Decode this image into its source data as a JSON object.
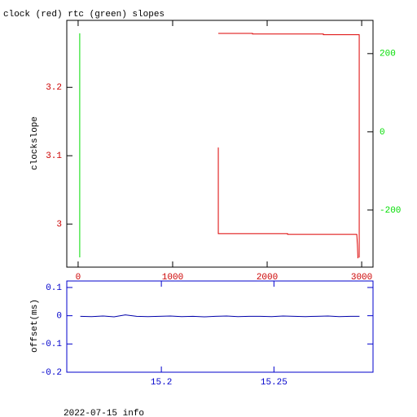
{
  "chart_data": [
    {
      "type": "line",
      "title": "clock (red) rtc (green) slopes",
      "ylabel": "clockslope",
      "axis_color": "#000000",
      "xtick_color": "#cc0000",
      "ytick_color": "#cc0000",
      "y2tick_color": "#00dd00",
      "xlim": [
        -120,
        3120
      ],
      "xticks": [
        0,
        1000,
        2000,
        3000
      ],
      "ylim": [
        2.937,
        3.298
      ],
      "yticks": [
        3,
        3.1,
        3.2
      ],
      "y2lim": [
        -346,
        285
      ],
      "y2ticks": [
        -200,
        0,
        200
      ],
      "series": [
        {
          "color": "#dd0000",
          "axis": "y",
          "x": [
            1483,
            1845,
            1845,
            2595,
            2595,
            2974,
            2974,
            null,
            1483,
            1483,
            2216,
            2216,
            2948,
            2955,
            2960
          ],
          "values": [
            3.279,
            3.279,
            3.278,
            3.278,
            3.277,
            3.277,
            2.951,
            null,
            3.112,
            2.986,
            2.986,
            2.985,
            2.985,
            2.97,
            2.95
          ]
        },
        {
          "color": "#00dd00",
          "axis": "y2",
          "x": [
            17,
            17
          ],
          "values": [
            252,
            -321
          ]
        }
      ]
    },
    {
      "type": "line",
      "ylabel": "offset(ms)",
      "caption": "2022-07-15 info",
      "axis_color": "#0000cc",
      "xtick_color": "#0000cc",
      "ytick_color": "#0000cc",
      "xlim": [
        15.158,
        15.294
      ],
      "xticks": [
        15.2,
        15.25
      ],
      "ylim": [
        -0.2,
        0.123
      ],
      "yticks": [
        -0.2,
        -0.1,
        0,
        0.1
      ],
      "series": [
        {
          "color": "#0000aa",
          "axis": "y",
          "x": [
            15.164,
            15.169,
            15.174,
            15.179,
            15.184,
            15.189,
            15.194,
            15.199,
            15.204,
            15.209,
            15.214,
            15.219,
            15.224,
            15.229,
            15.234,
            15.239,
            15.244,
            15.249,
            15.254,
            15.259,
            15.264,
            15.269,
            15.274,
            15.279,
            15.284,
            15.288
          ],
          "values": [
            -0.002,
            -0.003,
            -0.001,
            -0.004,
            0.003,
            -0.002,
            -0.003,
            -0.002,
            -0.001,
            -0.003,
            -0.002,
            -0.004,
            -0.002,
            -0.001,
            -0.003,
            -0.002,
            -0.002,
            -0.003,
            -0.001,
            -0.002,
            -0.003,
            -0.002,
            -0.001,
            -0.003,
            -0.002,
            -0.002
          ]
        }
      ]
    }
  ]
}
